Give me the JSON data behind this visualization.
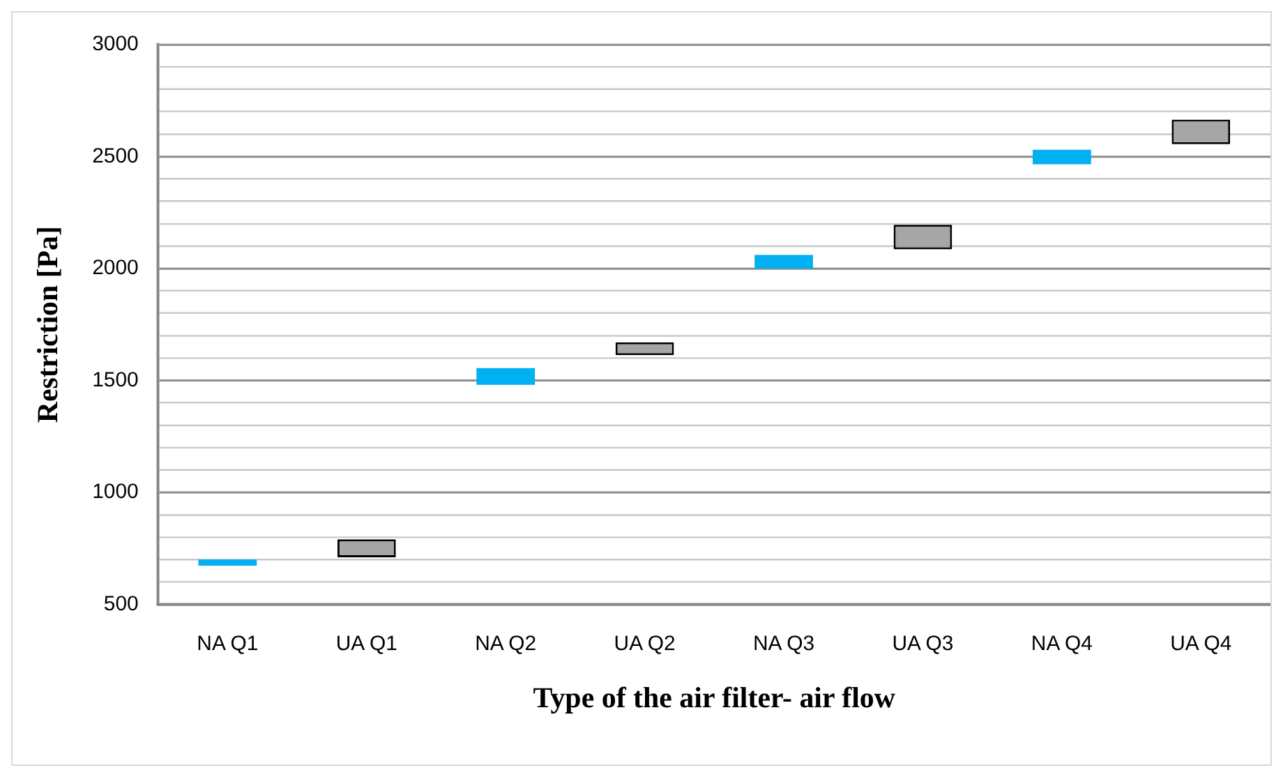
{
  "chart_data": {
    "type": "bar",
    "xlabel": "Type of the air filter- air flow",
    "ylabel": "Restriction [Pa]",
    "categories": [
      "NA Q1",
      "UA Q1",
      "NA Q2",
      "UA Q2",
      "NA Q3",
      "UA Q3",
      "NA Q4",
      "UA Q4"
    ],
    "series": [
      {
        "color": "#00b0f0",
        "values": [
          27,
          null,
          75,
          null,
          60,
          null,
          65,
          null
        ],
        "base": [
          673,
          null,
          1480,
          null,
          2000,
          null,
          2465,
          null
        ]
      },
      {
        "color": "#a6a6a6",
        "values": [
          null,
          80,
          null,
          57,
          null,
          110,
          null,
          110
        ],
        "base": [
          null,
          710,
          null,
          1613,
          null,
          2085,
          null,
          2555
        ]
      }
    ],
    "ylim": [
      500,
      3000
    ],
    "yticks": [
      500,
      {
        "value": 600,
        "label": null
      },
      {
        "value": 700,
        "label": null
      },
      {
        "value": 800,
        "label": null
      },
      {
        "value": 900,
        "label": null
      },
      1000,
      {
        "value": 1100,
        "label": null
      },
      {
        "value": 1200,
        "label": null
      },
      {
        "value": 1300,
        "label": null
      },
      {
        "value": 1400,
        "label": null
      },
      1500,
      {
        "value": 1600,
        "label": null
      },
      {
        "value": 1700,
        "label": null
      },
      {
        "value": 1800,
        "label": null
      },
      {
        "value": 1900,
        "label": null
      },
      2000,
      {
        "value": 2100,
        "label": null
      },
      {
        "value": 2200,
        "label": null
      },
      {
        "value": 2300,
        "label": null
      },
      {
        "value": 2400,
        "label": null
      },
      2500,
      {
        "value": 2600,
        "label": null
      },
      {
        "value": 2700,
        "label": null
      },
      {
        "value": 2800,
        "label": null
      },
      {
        "value": 2900,
        "label": null
      },
      3000
    ],
    "grid": "y",
    "legend": false
  }
}
